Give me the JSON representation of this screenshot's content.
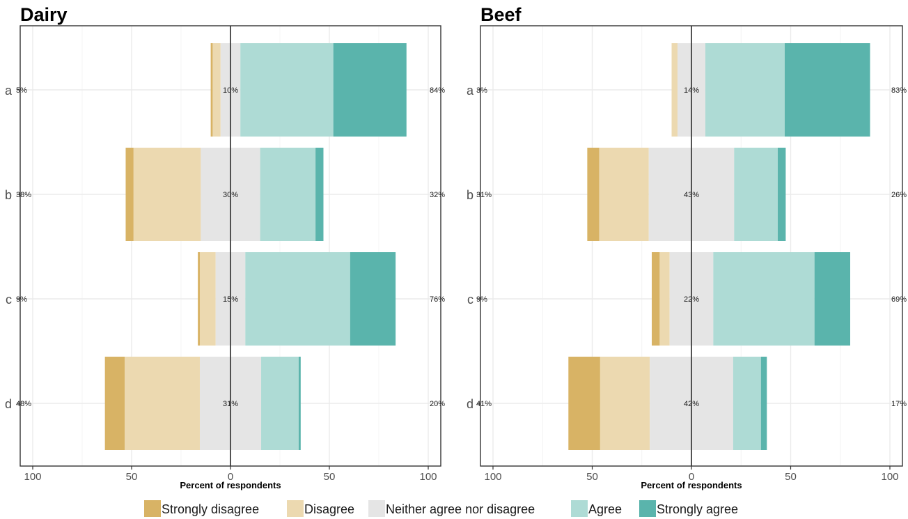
{
  "legend": {
    "items": [
      "Strongly disagree",
      "Disagree",
      "Neither agree nor disagree",
      "Agree",
      "Strongly agree"
    ],
    "colors": [
      "#d8b365",
      "#ecd9b0",
      "#e5e5e5",
      "#aedbd5",
      "#5ab4ac"
    ],
    "placement": "bottom"
  },
  "chart_data": [
    {
      "type": "bar",
      "orientation": "horizontal-diverging",
      "title": "Dairy",
      "xlabel": "Percent of respondents",
      "xlim": [
        -100,
        100
      ],
      "xticks": [
        -100,
        -50,
        0,
        50,
        100
      ],
      "xtick_labels": [
        "100",
        "50",
        "0",
        "50",
        "100"
      ],
      "grid": true,
      "categories": [
        "a",
        "b",
        "c",
        "d"
      ],
      "series": [
        {
          "name": "Strongly disagree",
          "values": [
            1,
            4,
            1,
            10
          ]
        },
        {
          "name": "Disagree",
          "values": [
            4,
            34,
            8,
            38
          ]
        },
        {
          "name": "Neither agree nor disagree",
          "values": [
            10,
            30,
            15,
            31
          ]
        },
        {
          "name": "Agree",
          "values": [
            47,
            28,
            53,
            19
          ]
        },
        {
          "name": "Strongly agree",
          "values": [
            37,
            4,
            23,
            1
          ]
        }
      ],
      "left_labels": [
        "5%",
        "38%",
        "9%",
        "48%"
      ],
      "center_labels": [
        "10%",
        "30%",
        "15%",
        "31%"
      ],
      "right_labels": [
        "84%",
        "32%",
        "76%",
        "20%"
      ]
    },
    {
      "type": "bar",
      "orientation": "horizontal-diverging",
      "title": "Beef",
      "xlabel": "Percent of respondents",
      "xlim": [
        -100,
        100
      ],
      "xticks": [
        -100,
        -50,
        0,
        50,
        100
      ],
      "xtick_labels": [
        "100",
        "50",
        "0",
        "50",
        "100"
      ],
      "grid": true,
      "categories": [
        "a",
        "b",
        "c",
        "d"
      ],
      "series": [
        {
          "name": "Strongly disagree",
          "values": [
            0,
            6,
            4,
            16
          ]
        },
        {
          "name": "Disagree",
          "values": [
            3,
            25,
            5,
            25
          ]
        },
        {
          "name": "Neither agree nor disagree",
          "values": [
            14,
            43,
            22,
            42
          ]
        },
        {
          "name": "Agree",
          "values": [
            40,
            22,
            51,
            14
          ]
        },
        {
          "name": "Strongly agree",
          "values": [
            43,
            4,
            18,
            3
          ]
        }
      ],
      "left_labels": [
        "3%",
        "31%",
        "9%",
        "41%"
      ],
      "center_labels": [
        "14%",
        "43%",
        "22%",
        "42%"
      ],
      "right_labels": [
        "83%",
        "26%",
        "69%",
        "17%"
      ]
    }
  ]
}
